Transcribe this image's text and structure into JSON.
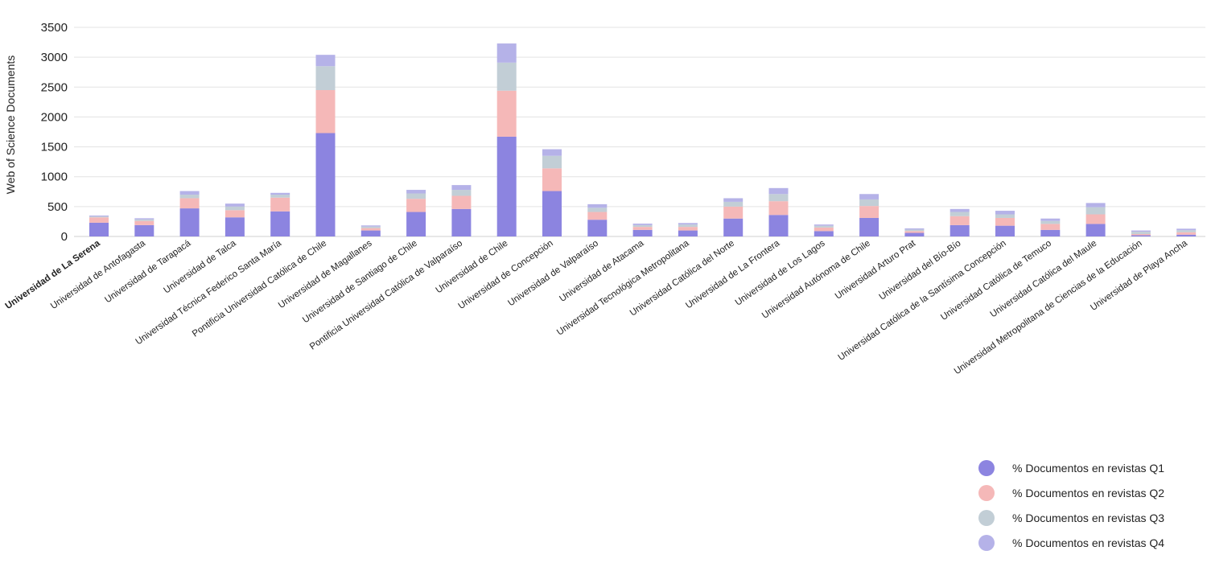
{
  "chart_data": {
    "type": "bar",
    "stacked": true,
    "ylabel": "Web of Science Documents",
    "xlabel": "",
    "title": "",
    "ylim": [
      0,
      3500
    ],
    "yticks": [
      0,
      500,
      1000,
      1500,
      2000,
      2500,
      3000,
      3500
    ],
    "grid": true,
    "legend_position": "bottom-right",
    "highlighted_category": "Universidad de La Serena",
    "categories": [
      "Universidad de La Serena",
      "Universidad de Antofagasta",
      "Universidad de Tarapacá",
      "Universidad de Talca",
      "Universidad Técnica Federico Santa María",
      "Pontificia Universidad Católica de Chile",
      "Universidad de Magallanes",
      "Universidad de Santiago de Chile",
      "Pontificia Universidad Católica de Valparaíso",
      "Universidad de Chile",
      "Universidad de Concepción",
      "Universidad de Valparaíso",
      "Universidad de Atacama",
      "Universidad Tecnológica Metropolitana",
      "Universidad Católica del Norte",
      "Universidad de La Frontera",
      "Universidad de Los Lagos",
      "Universidad Autónoma de Chile",
      "Universidad Arturo Prat",
      "Universidad del Bío-Bío",
      "Universidad Católica de la Santísima Concepción",
      "Universidad Católica de Temuco",
      "Universidad Católica del Maule",
      "Universidad Metropolitana de Ciencias de la Educación",
      "Universidad de Playa Ancha"
    ],
    "series": [
      {
        "name": "% Documentos en revistas Q1",
        "color": "#8c84e0",
        "values": [
          230,
          190,
          470,
          320,
          420,
          1730,
          100,
          410,
          460,
          1670,
          760,
          280,
          110,
          100,
          300,
          360,
          90,
          310,
          60,
          190,
          180,
          110,
          210,
          20,
          30
        ]
      },
      {
        "name": "% Documentos en revistas Q2",
        "color": "#f5b8b8",
        "values": [
          90,
          70,
          170,
          120,
          230,
          720,
          40,
          220,
          220,
          770,
          380,
          130,
          50,
          60,
          200,
          230,
          60,
          200,
          30,
          150,
          130,
          100,
          160,
          20,
          40
        ]
      },
      {
        "name": "% Documentos en revistas Q3",
        "color": "#c2ced6",
        "values": [
          15,
          25,
          60,
          60,
          50,
          400,
          25,
          90,
          100,
          470,
          210,
          70,
          30,
          40,
          80,
          120,
          30,
          110,
          25,
          70,
          60,
          50,
          120,
          40,
          35
        ]
      },
      {
        "name": "% Documentos en revistas Q4",
        "color": "#b5b2e8",
        "values": [
          15,
          20,
          60,
          50,
          30,
          190,
          20,
          60,
          80,
          320,
          110,
          60,
          25,
          25,
          60,
          100,
          20,
          90,
          20,
          50,
          60,
          40,
          70,
          20,
          25
        ]
      }
    ]
  }
}
